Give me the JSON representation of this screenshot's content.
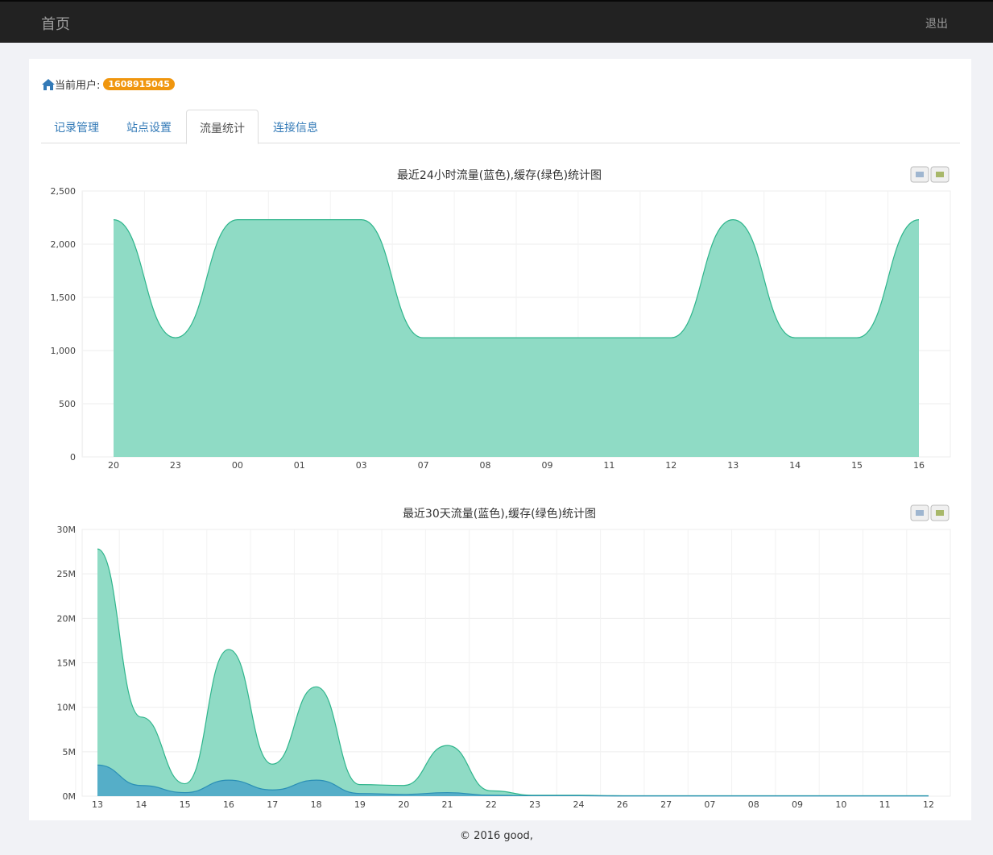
{
  "nav": {
    "brand": "首页",
    "logout": "退出"
  },
  "user": {
    "label": "当前用户:",
    "id": "1608915045",
    "icon": "home-icon"
  },
  "tabs": [
    {
      "label": "记录管理"
    },
    {
      "label": "站点设置"
    },
    {
      "label": "流量统计",
      "active": true
    },
    {
      "label": "连接信息"
    }
  ],
  "colors": {
    "traffic_blue": "#4fa8c8",
    "cache_green": "#8fdbc5",
    "green_line": "#2fb58c",
    "badge": "#f0960e"
  },
  "chart_data": [
    {
      "type": "area",
      "title": "最近24小时流量(蓝色),缓存(绿色)统计图",
      "buttons": [
        "print-icon",
        "download-icon"
      ],
      "categories": [
        "20",
        "23",
        "00",
        "01",
        "03",
        "07",
        "08",
        "09",
        "11",
        "12",
        "13",
        "14",
        "15",
        "16"
      ],
      "series": [
        {
          "values": [
            2230,
            1120,
            2230,
            2230,
            2230,
            1120,
            1120,
            1120,
            1120,
            1120,
            2230,
            1120,
            1120,
            2230
          ]
        }
      ],
      "ylim": [
        0,
        2500
      ],
      "yticks": [
        "0",
        "500",
        "1,000",
        "1,500",
        "2,000",
        "2,500"
      ],
      "grid": true
    },
    {
      "type": "area",
      "title": "最近30天流量(蓝色),缓存(绿色)统计图",
      "buttons": [
        "print-icon",
        "download-icon"
      ],
      "categories": [
        "13",
        "14",
        "15",
        "16",
        "17",
        "18",
        "19",
        "20",
        "21",
        "22",
        "23",
        "24",
        "26",
        "27",
        "07",
        "08",
        "09",
        "10",
        "11",
        "12"
      ],
      "series": [
        {
          "values": [
            27.8,
            8.9,
            1.4,
            16.5,
            3.6,
            12.3,
            1.3,
            1.2,
            5.7,
            0.6,
            0.1,
            0.1,
            0.05,
            0.05,
            0.05,
            0.05,
            0.05,
            0.05,
            0.05,
            0.05
          ]
        },
        {
          "values": [
            3.5,
            1.2,
            0.4,
            1.8,
            0.7,
            1.8,
            0.3,
            0.2,
            0.4,
            0.1,
            0.05,
            0.05,
            0.02,
            0.02,
            0.02,
            0.02,
            0.02,
            0.02,
            0.02,
            0.02
          ]
        }
      ],
      "ylim": [
        0,
        30
      ],
      "yticks": [
        "0M",
        "5M",
        "10M",
        "15M",
        "20M",
        "25M",
        "30M"
      ],
      "grid": true
    }
  ],
  "footer": "© 2016 good,"
}
